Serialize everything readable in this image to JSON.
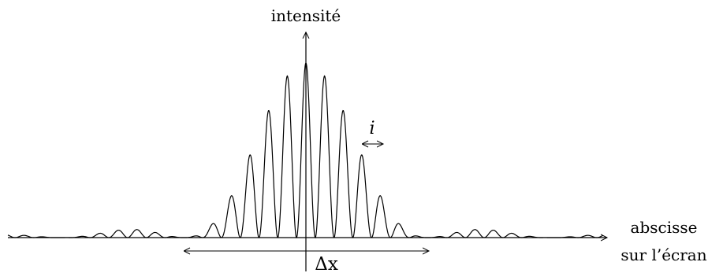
{
  "figure": {
    "y_axis_label": "intensité",
    "x_axis_label_line1": "abscisse",
    "x_axis_label_line2": "sur l’écran",
    "fringe_spacing_label": "i",
    "envelope_width_label": "Δx"
  },
  "style": {
    "stroke_color": "#000000",
    "background": "#ffffff"
  }
}
